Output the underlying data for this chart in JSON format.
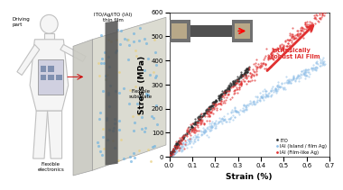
{
  "xlabel": "Strain (%)",
  "ylabel": "Stress (MPa)",
  "xlim": [
    0.0,
    0.7
  ],
  "ylim": [
    0,
    600
  ],
  "xticks": [
    0.0,
    0.1,
    0.2,
    0.3,
    0.4,
    0.5,
    0.6,
    0.7
  ],
  "yticks": [
    0,
    100,
    200,
    300,
    400,
    500,
    600
  ],
  "ito_color": "#2b2b2b",
  "iai_island_color": "#90bfe8",
  "iai_film_color": "#e03030",
  "legend_labels": [
    "ITO",
    "IAI (Island / film Ag)",
    "IAI (Film-like Ag)"
  ],
  "annotation_text": "Intrinsically\nrobust IAI Film",
  "annotation_color": "#e03030",
  "background_color": "#ffffff",
  "left_bg": "#f5f5f5",
  "panel_face": "#c8c8c0",
  "panel_face2": "#d8d8cc",
  "body_color": "#c0c0c0",
  "dot_blue": "#6ab0e0",
  "dot_yellow": "#e8d080",
  "red_arrow": "#cc0000",
  "strip_color": "#505050",
  "label_fontsize": 4.0,
  "axis_fontsize": 6.5
}
